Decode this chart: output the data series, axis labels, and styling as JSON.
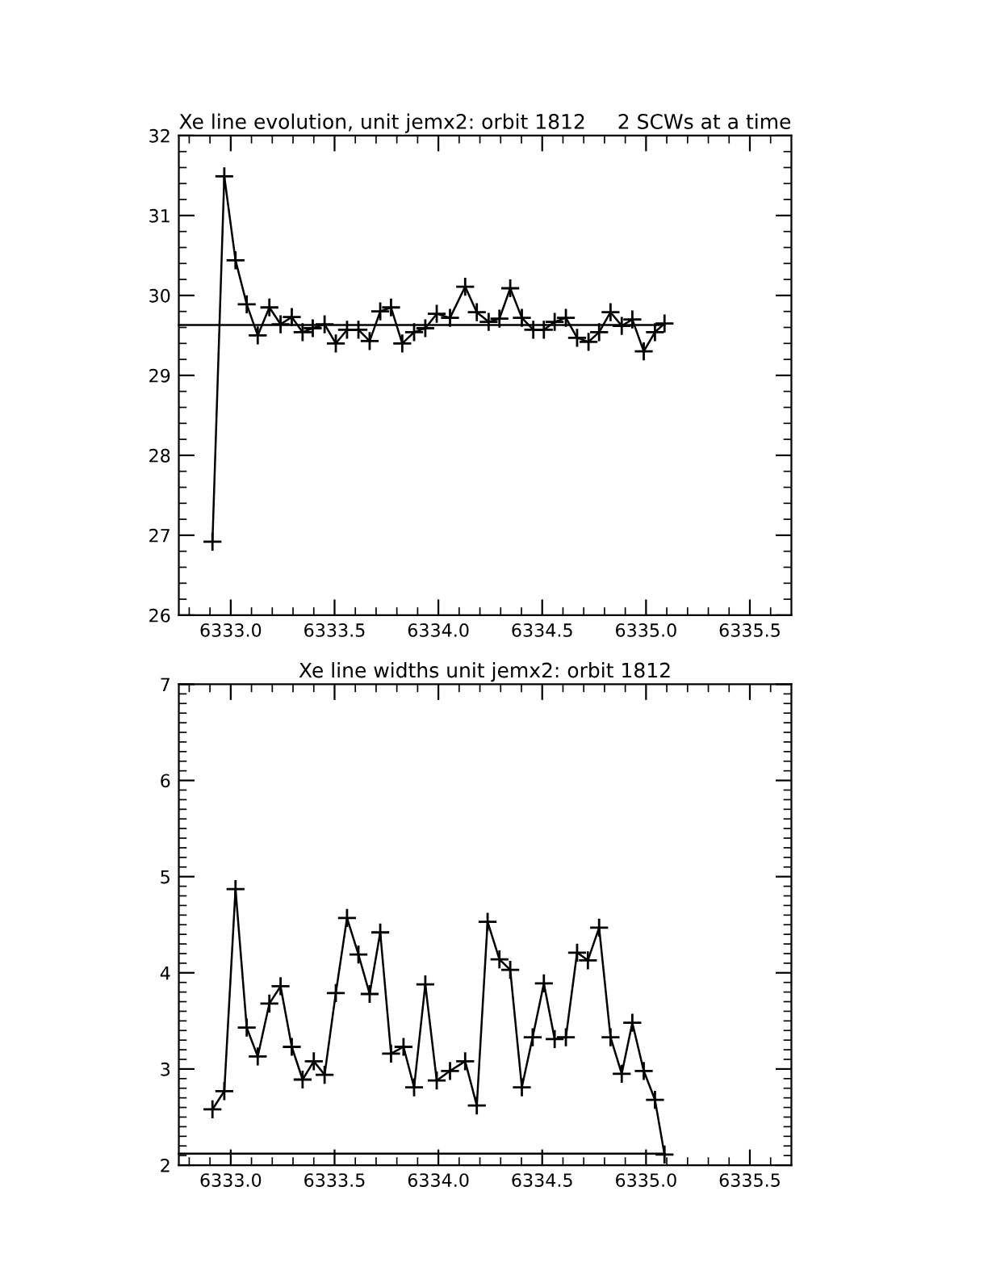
{
  "chart_data": [
    {
      "type": "line",
      "title": "Xe line evolution, unit jemx2: orbit 1812",
      "subtitle": "2 SCWs at a time",
      "marker": "cross",
      "line_style": "solid",
      "grid": false,
      "legend": false,
      "xlim": [
        6332.75,
        6335.7
      ],
      "ylim": [
        26,
        32
      ],
      "xticks": [
        {
          "value": 6333.0,
          "label": "6333.0"
        },
        {
          "value": 6333.5,
          "label": "6333.5"
        },
        {
          "value": 6334.0,
          "label": "6334.0"
        },
        {
          "value": 6334.5,
          "label": "6334.5"
        },
        {
          "value": 6335.0,
          "label": "6335.0"
        },
        {
          "value": 6335.5,
          "label": "6335.5"
        },
        {
          "value": 6332.8,
          "label": null
        },
        {
          "value": 6332.9,
          "label": null
        },
        {
          "value": 6333.1,
          "label": null
        },
        {
          "value": 6333.2,
          "label": null
        },
        {
          "value": 6333.3,
          "label": null
        },
        {
          "value": 6333.4,
          "label": null
        },
        {
          "value": 6333.6,
          "label": null
        },
        {
          "value": 6333.7,
          "label": null
        },
        {
          "value": 6333.8,
          "label": null
        },
        {
          "value": 6333.9,
          "label": null
        },
        {
          "value": 6334.1,
          "label": null
        },
        {
          "value": 6334.2,
          "label": null
        },
        {
          "value": 6334.3,
          "label": null
        },
        {
          "value": 6334.4,
          "label": null
        },
        {
          "value": 6334.6,
          "label": null
        },
        {
          "value": 6334.7,
          "label": null
        },
        {
          "value": 6334.8,
          "label": null
        },
        {
          "value": 6334.9,
          "label": null
        },
        {
          "value": 6335.1,
          "label": null
        },
        {
          "value": 6335.2,
          "label": null
        },
        {
          "value": 6335.3,
          "label": null
        },
        {
          "value": 6335.4,
          "label": null
        },
        {
          "value": 6335.6,
          "label": null
        }
      ],
      "yticks": [
        26,
        27,
        28,
        29,
        30,
        31,
        32,
        {
          "value": 26.2,
          "label": null
        },
        {
          "value": 26.4,
          "label": null
        },
        {
          "value": 26.6,
          "label": null
        },
        {
          "value": 26.8,
          "label": null
        },
        {
          "value": 27.2,
          "label": null
        },
        {
          "value": 27.4,
          "label": null
        },
        {
          "value": 27.6,
          "label": null
        },
        {
          "value": 27.8,
          "label": null
        },
        {
          "value": 28.2,
          "label": null
        },
        {
          "value": 28.4,
          "label": null
        },
        {
          "value": 28.6,
          "label": null
        },
        {
          "value": 28.8,
          "label": null
        },
        {
          "value": 29.2,
          "label": null
        },
        {
          "value": 29.4,
          "label": null
        },
        {
          "value": 29.6,
          "label": null
        },
        {
          "value": 29.8,
          "label": null
        },
        {
          "value": 30.2,
          "label": null
        },
        {
          "value": 30.4,
          "label": null
        },
        {
          "value": 30.6,
          "label": null
        },
        {
          "value": 30.8,
          "label": null
        },
        {
          "value": 31.2,
          "label": null
        },
        {
          "value": 31.4,
          "label": null
        },
        {
          "value": 31.6,
          "label": null
        },
        {
          "value": 31.8,
          "label": null
        }
      ],
      "series": [
        {
          "color": "#000000",
          "x": [
            6332.912,
            6332.969,
            6333.023,
            6333.077,
            6333.13,
            6333.186,
            6333.24,
            6333.294,
            6333.346,
            6333.395,
            6333.452,
            6333.506,
            6333.56,
            6333.615,
            6333.669,
            6333.72,
            6333.772,
            6333.826,
            6333.883,
            6333.937,
            6333.992,
            6334.056,
            6334.129,
            6334.185,
            6334.242,
            6334.294,
            6334.346,
            6334.402,
            6334.457,
            6334.508,
            6334.56,
            6334.614,
            6334.668,
            6334.723,
            6334.774,
            6334.829,
            6334.883,
            6334.934,
            6334.989,
            6335.043,
            6335.089
          ],
          "values": [
            26.92,
            31.49,
            30.44,
            29.89,
            29.5,
            29.85,
            29.64,
            29.73,
            29.54,
            29.59,
            29.64,
            29.4,
            29.57,
            29.57,
            29.43,
            29.8,
            29.85,
            29.4,
            29.54,
            29.59,
            29.77,
            29.72,
            30.11,
            29.79,
            29.67,
            29.71,
            30.09,
            29.72,
            29.57,
            29.57,
            29.67,
            29.72,
            29.47,
            29.42,
            29.54,
            29.79,
            29.62,
            29.7,
            29.3,
            29.54,
            29.65
          ]
        },
        {
          "color": "#000000",
          "marker": "none",
          "x": [
            6332.75,
            6335.089
          ],
          "values": [
            29.63,
            29.63
          ]
        }
      ]
    },
    {
      "type": "line",
      "title": "Xe line widths unit jemx2: orbit 1812",
      "marker": "cross",
      "line_style": "solid",
      "grid": false,
      "legend": false,
      "xlim": [
        6332.75,
        6335.7
      ],
      "ylim": [
        2,
        7
      ],
      "xticks": [
        {
          "value": 6333.0,
          "label": "6333.0"
        },
        {
          "value": 6333.5,
          "label": "6333.5"
        },
        {
          "value": 6334.0,
          "label": "6334.0"
        },
        {
          "value": 6334.5,
          "label": "6334.5"
        },
        {
          "value": 6335.0,
          "label": "6335.0"
        },
        {
          "value": 6335.5,
          "label": "6335.5"
        },
        {
          "value": 6332.8,
          "label": null
        },
        {
          "value": 6332.9,
          "label": null
        },
        {
          "value": 6333.1,
          "label": null
        },
        {
          "value": 6333.2,
          "label": null
        },
        {
          "value": 6333.3,
          "label": null
        },
        {
          "value": 6333.4,
          "label": null
        },
        {
          "value": 6333.6,
          "label": null
        },
        {
          "value": 6333.7,
          "label": null
        },
        {
          "value": 6333.8,
          "label": null
        },
        {
          "value": 6333.9,
          "label": null
        },
        {
          "value": 6334.1,
          "label": null
        },
        {
          "value": 6334.2,
          "label": null
        },
        {
          "value": 6334.3,
          "label": null
        },
        {
          "value": 6334.4,
          "label": null
        },
        {
          "value": 6334.6,
          "label": null
        },
        {
          "value": 6334.7,
          "label": null
        },
        {
          "value": 6334.8,
          "label": null
        },
        {
          "value": 6334.9,
          "label": null
        },
        {
          "value": 6335.1,
          "label": null
        },
        {
          "value": 6335.2,
          "label": null
        },
        {
          "value": 6335.3,
          "label": null
        },
        {
          "value": 6335.4,
          "label": null
        },
        {
          "value": 6335.6,
          "label": null
        }
      ],
      "yticks": [
        2,
        3,
        4,
        5,
        6,
        7,
        {
          "value": 2.1,
          "label": null
        },
        {
          "value": 2.2,
          "label": null
        },
        {
          "value": 2.3,
          "label": null
        },
        {
          "value": 2.4,
          "label": null
        },
        {
          "value": 2.5,
          "label": null
        },
        {
          "value": 2.6,
          "label": null
        },
        {
          "value": 2.7,
          "label": null
        },
        {
          "value": 2.8,
          "label": null
        },
        {
          "value": 2.9,
          "label": null
        },
        {
          "value": 3.1,
          "label": null
        },
        {
          "value": 3.2,
          "label": null
        },
        {
          "value": 3.3,
          "label": null
        },
        {
          "value": 3.4,
          "label": null
        },
        {
          "value": 3.5,
          "label": null
        },
        {
          "value": 3.6,
          "label": null
        },
        {
          "value": 3.7,
          "label": null
        },
        {
          "value": 3.8,
          "label": null
        },
        {
          "value": 3.9,
          "label": null
        },
        {
          "value": 4.1,
          "label": null
        },
        {
          "value": 4.2,
          "label": null
        },
        {
          "value": 4.3,
          "label": null
        },
        {
          "value": 4.4,
          "label": null
        },
        {
          "value": 4.5,
          "label": null
        },
        {
          "value": 4.6,
          "label": null
        },
        {
          "value": 4.7,
          "label": null
        },
        {
          "value": 4.8,
          "label": null
        },
        {
          "value": 4.9,
          "label": null
        },
        {
          "value": 5.1,
          "label": null
        },
        {
          "value": 5.2,
          "label": null
        },
        {
          "value": 5.3,
          "label": null
        },
        {
          "value": 5.4,
          "label": null
        },
        {
          "value": 5.5,
          "label": null
        },
        {
          "value": 5.6,
          "label": null
        },
        {
          "value": 5.7,
          "label": null
        },
        {
          "value": 5.8,
          "label": null
        },
        {
          "value": 5.9,
          "label": null
        },
        {
          "value": 6.1,
          "label": null
        },
        {
          "value": 6.2,
          "label": null
        },
        {
          "value": 6.3,
          "label": null
        },
        {
          "value": 6.4,
          "label": null
        },
        {
          "value": 6.5,
          "label": null
        },
        {
          "value": 6.6,
          "label": null
        },
        {
          "value": 6.7,
          "label": null
        },
        {
          "value": 6.8,
          "label": null
        },
        {
          "value": 6.9,
          "label": null
        }
      ],
      "series": [
        {
          "color": "#000000",
          "x": [
            6332.912,
            6332.969,
            6333.023,
            6333.077,
            6333.13,
            6333.186,
            6333.24,
            6333.294,
            6333.346,
            6333.4,
            6333.452,
            6333.506,
            6333.56,
            6333.615,
            6333.669,
            6333.72,
            6333.772,
            6333.832,
            6333.883,
            6333.937,
            6333.992,
            6334.056,
            6334.129,
            6334.185,
            6334.237,
            6334.294,
            6334.346,
            6334.402,
            6334.454,
            6334.508,
            6334.56,
            6334.614,
            6334.668,
            6334.72,
            6334.774,
            6334.829,
            6334.883,
            6334.934,
            6334.989,
            6335.043,
            6335.089
          ],
          "values": [
            2.58,
            2.77,
            4.87,
            3.43,
            3.13,
            3.68,
            3.86,
            3.23,
            2.89,
            3.08,
            2.94,
            3.79,
            4.57,
            4.19,
            3.78,
            4.42,
            3.16,
            3.23,
            2.81,
            3.88,
            2.88,
            2.98,
            3.08,
            2.62,
            4.53,
            4.14,
            4.03,
            2.81,
            3.33,
            3.89,
            3.31,
            3.33,
            4.21,
            4.13,
            4.47,
            3.33,
            2.95,
            3.48,
            2.98,
            2.68,
            2.11
          ]
        },
        {
          "color": "#000000",
          "marker": "none",
          "x": [
            6332.75,
            6335.089
          ],
          "values": [
            2.12,
            2.12
          ]
        }
      ]
    }
  ]
}
